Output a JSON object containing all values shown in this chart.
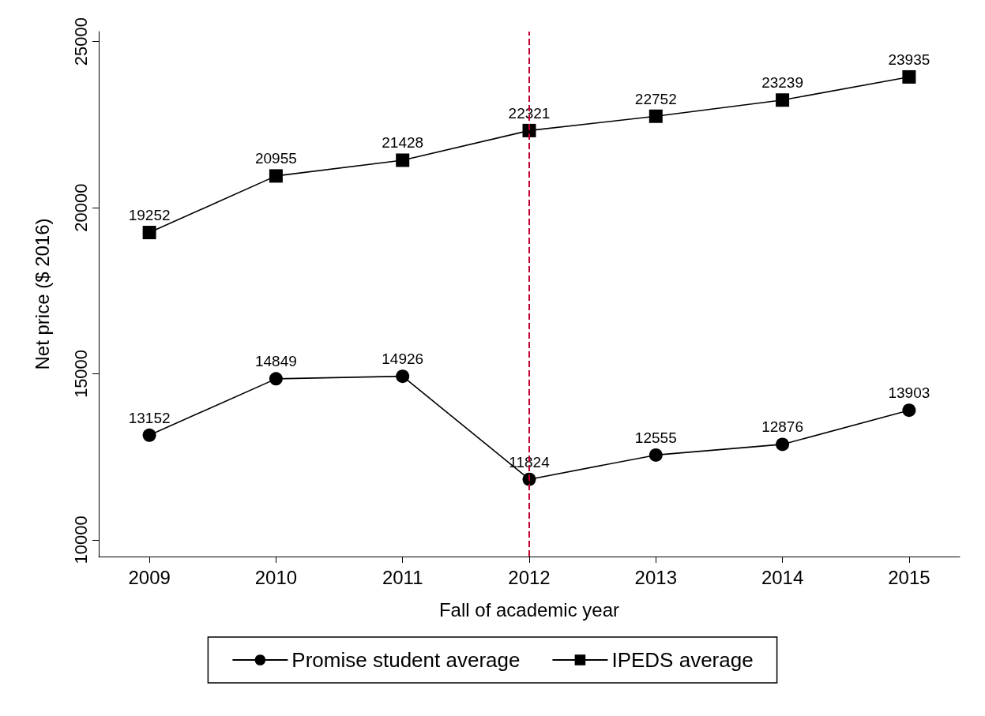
{
  "chart_data": {
    "type": "line",
    "xlabel": "Fall of academic year",
    "ylabel": "Net price ($ 2016)",
    "x": [
      2009,
      2010,
      2011,
      2012,
      2013,
      2014,
      2015
    ],
    "series": [
      {
        "name": "Promise student average",
        "color": "#000000",
        "marker": "circle",
        "values": [
          13152,
          14849,
          14926,
          11824,
          12555,
          12876,
          13903
        ]
      },
      {
        "name": "IPEDS average",
        "color": "#000000",
        "marker": "square",
        "values": [
          19252,
          20955,
          21428,
          22321,
          22752,
          23239,
          23935
        ]
      }
    ],
    "xlim": [
      2008.6,
      2015.4
    ],
    "xticks": [
      2009,
      2010,
      2011,
      2012,
      2013,
      2014,
      2015
    ],
    "ylim": [
      9500,
      25300
    ],
    "yticks": [
      10000,
      15000,
      20000,
      25000
    ],
    "ref_lines": [
      {
        "axis": "x",
        "value": 2012,
        "color": "#c00030",
        "line_style": "dashed"
      }
    ],
    "data_labels": true,
    "grid": false,
    "legend": "bottom",
    "line_style": "solid"
  }
}
